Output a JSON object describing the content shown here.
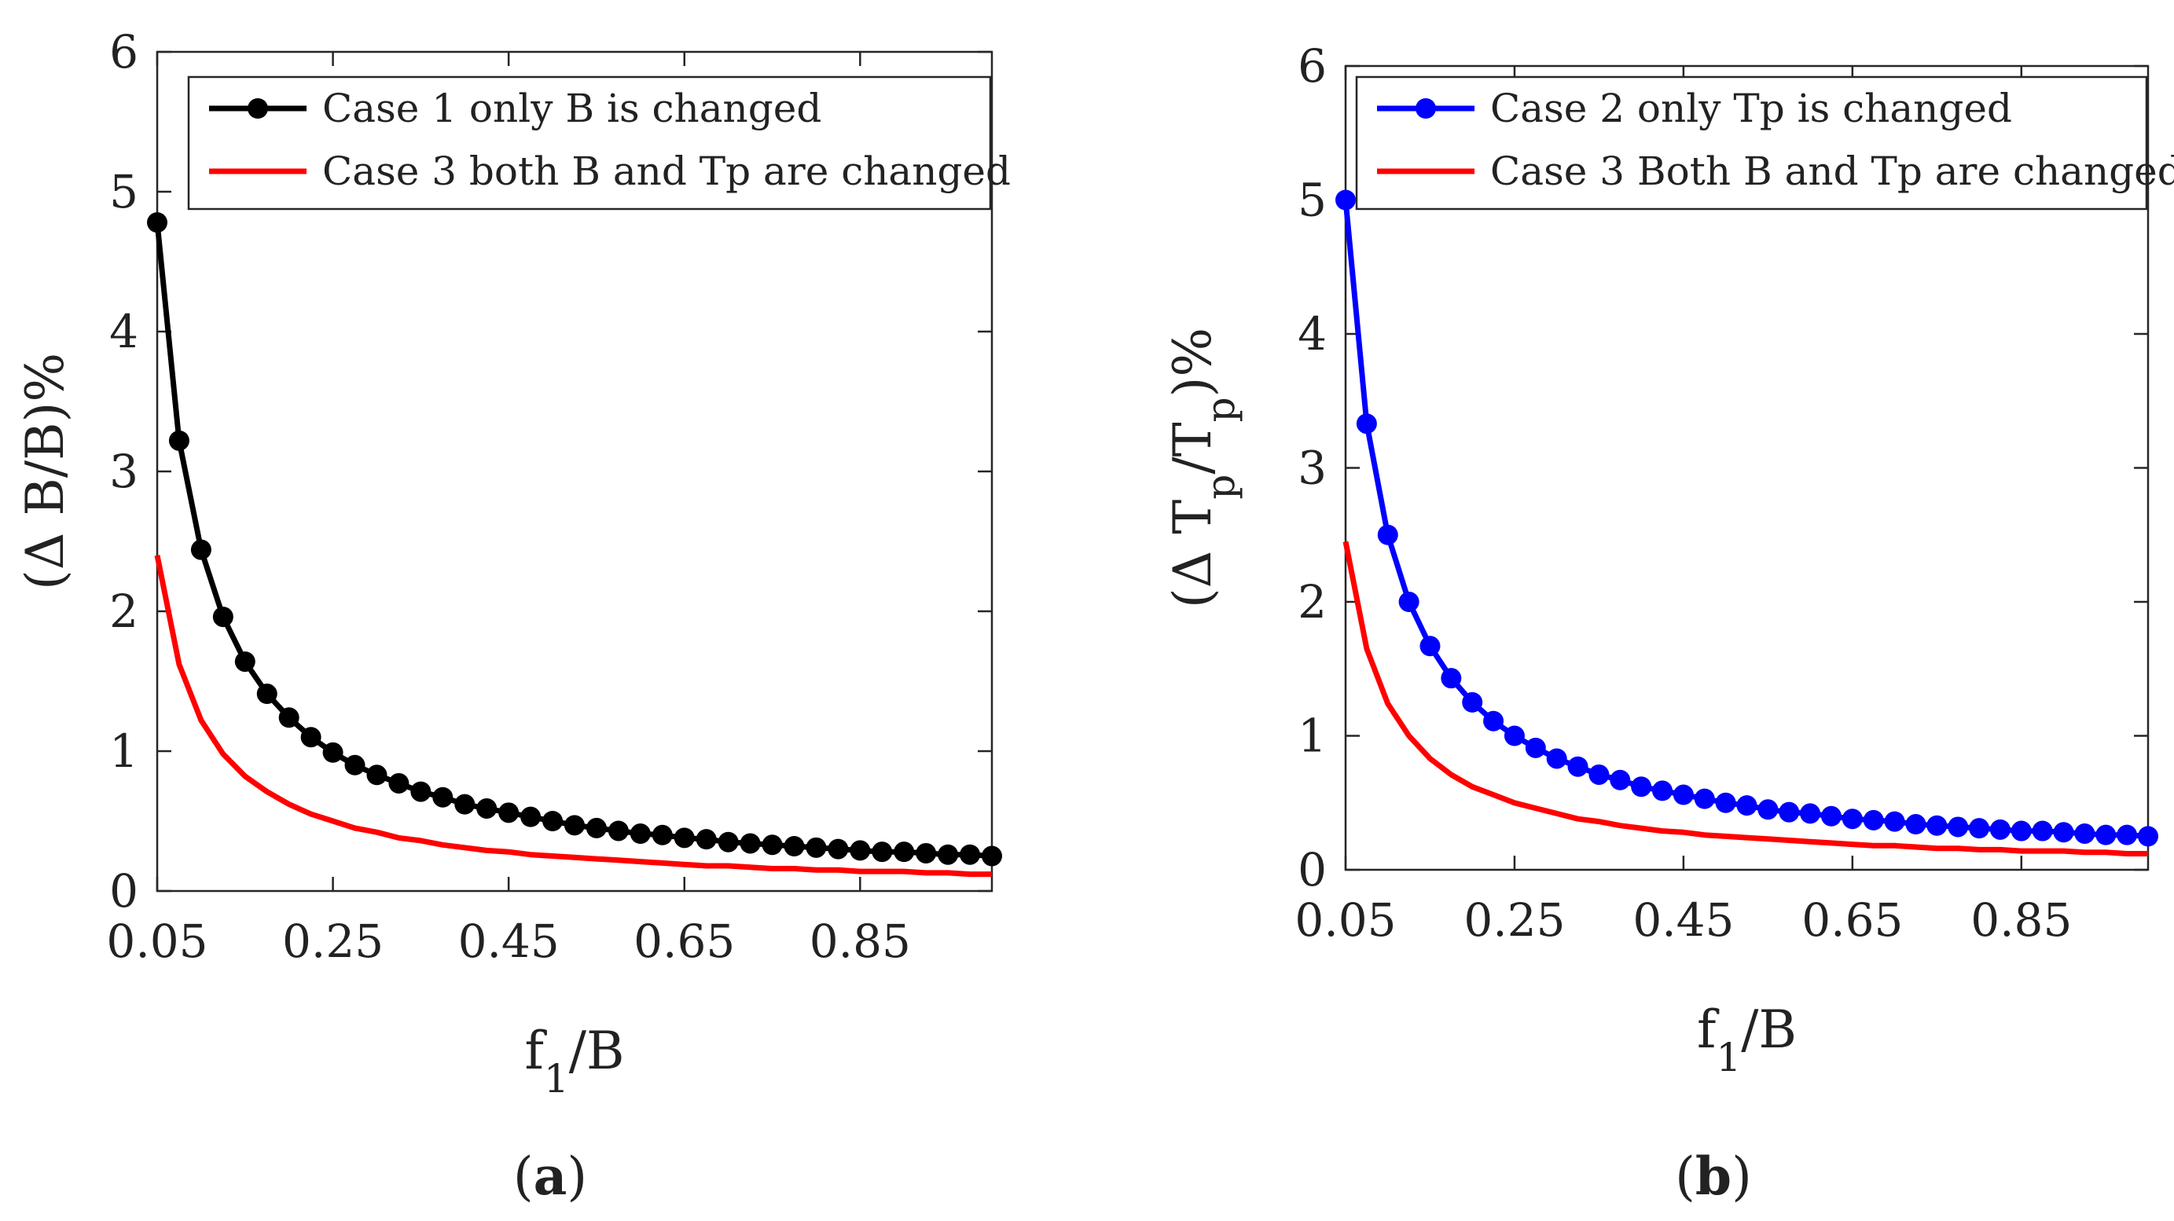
{
  "chart_data": [
    {
      "id": "a",
      "type": "line",
      "caption_letter": "a",
      "ylabel": "(Δ B/B)%",
      "xlabel_main": "f",
      "xlabel_sub": "1",
      "xlabel_rest": "/B",
      "xlim": [
        0.05,
        1.0
      ],
      "ylim": [
        0,
        6
      ],
      "xticks": [
        "0.05",
        "0.25",
        "0.45",
        "0.65",
        "0.85"
      ],
      "xtick_values": [
        0.05,
        0.25,
        0.45,
        0.65,
        0.85
      ],
      "yticks": [
        "0",
        "1",
        "2",
        "3",
        "4",
        "5",
        "6"
      ],
      "legend": [
        "Case 1 only B is changed",
        "Case 3 both B and Tp are changed"
      ],
      "series": [
        {
          "name": "Case 1 only B is changed",
          "color": "#000000",
          "marker": "circle",
          "x": [
            0.05,
            0.075,
            0.1,
            0.125,
            0.15,
            0.175,
            0.2,
            0.225,
            0.25,
            0.275,
            0.3,
            0.325,
            0.35,
            0.375,
            0.4,
            0.425,
            0.45,
            0.475,
            0.5,
            0.525,
            0.55,
            0.575,
            0.6,
            0.625,
            0.65,
            0.675,
            0.7,
            0.725,
            0.75,
            0.775,
            0.8,
            0.825,
            0.85,
            0.875,
            0.9,
            0.925,
            0.95,
            0.975,
            1.0
          ],
          "y": [
            4.78,
            3.22,
            2.44,
            1.96,
            1.64,
            1.41,
            1.24,
            1.1,
            0.99,
            0.9,
            0.83,
            0.77,
            0.71,
            0.67,
            0.62,
            0.59,
            0.56,
            0.53,
            0.5,
            0.47,
            0.45,
            0.43,
            0.41,
            0.4,
            0.38,
            0.37,
            0.35,
            0.34,
            0.33,
            0.32,
            0.31,
            0.3,
            0.29,
            0.28,
            0.28,
            0.27,
            0.26,
            0.26,
            0.25
          ]
        },
        {
          "name": "Case 3 both B and Tp are changed",
          "color": "#ff0000",
          "marker": "none",
          "x": [
            0.05,
            0.075,
            0.1,
            0.125,
            0.15,
            0.175,
            0.2,
            0.225,
            0.25,
            0.275,
            0.3,
            0.325,
            0.35,
            0.375,
            0.4,
            0.425,
            0.45,
            0.475,
            0.5,
            0.525,
            0.55,
            0.575,
            0.6,
            0.625,
            0.65,
            0.675,
            0.7,
            0.725,
            0.75,
            0.775,
            0.8,
            0.825,
            0.85,
            0.875,
            0.9,
            0.925,
            0.95,
            0.975,
            1.0
          ],
          "y": [
            2.4,
            1.62,
            1.22,
            0.98,
            0.82,
            0.71,
            0.62,
            0.55,
            0.5,
            0.45,
            0.42,
            0.38,
            0.36,
            0.33,
            0.31,
            0.29,
            0.28,
            0.26,
            0.25,
            0.24,
            0.23,
            0.22,
            0.21,
            0.2,
            0.19,
            0.18,
            0.18,
            0.17,
            0.16,
            0.16,
            0.15,
            0.15,
            0.14,
            0.14,
            0.14,
            0.13,
            0.13,
            0.12,
            0.12
          ]
        }
      ]
    },
    {
      "id": "b",
      "type": "line",
      "caption_letter": "b",
      "ylabel_parts": [
        "(Δ T",
        "p",
        "/T",
        "p",
        ")%"
      ],
      "xlabel_main": "f",
      "xlabel_sub": "1",
      "xlabel_rest": "/B",
      "xlim": [
        0.05,
        1.0
      ],
      "ylim": [
        0,
        6
      ],
      "xticks": [
        "0.05",
        "0.25",
        "0.45",
        "0.65",
        "0.85"
      ],
      "xtick_values": [
        0.05,
        0.25,
        0.45,
        0.65,
        0.85
      ],
      "yticks": [
        "0",
        "1",
        "2",
        "3",
        "4",
        "5",
        "6"
      ],
      "legend": [
        "Case 2 only Tp is changed",
        "Case 3 Both B and Tp are changed"
      ],
      "series": [
        {
          "name": "Case 2 only Tp is changed",
          "color": "#0000ff",
          "marker": "circle",
          "x": [
            0.05,
            0.075,
            0.1,
            0.125,
            0.15,
            0.175,
            0.2,
            0.225,
            0.25,
            0.275,
            0.3,
            0.325,
            0.35,
            0.375,
            0.4,
            0.425,
            0.45,
            0.475,
            0.5,
            0.525,
            0.55,
            0.575,
            0.6,
            0.625,
            0.65,
            0.675,
            0.7,
            0.725,
            0.75,
            0.775,
            0.8,
            0.825,
            0.85,
            0.875,
            0.9,
            0.925,
            0.95,
            0.975,
            1.0
          ],
          "y": [
            5.0,
            3.33,
            2.5,
            2.0,
            1.67,
            1.43,
            1.25,
            1.11,
            1.0,
            0.91,
            0.83,
            0.77,
            0.71,
            0.67,
            0.62,
            0.59,
            0.56,
            0.53,
            0.5,
            0.48,
            0.45,
            0.43,
            0.42,
            0.4,
            0.38,
            0.37,
            0.36,
            0.34,
            0.33,
            0.32,
            0.31,
            0.3,
            0.29,
            0.29,
            0.28,
            0.27,
            0.26,
            0.26,
            0.25
          ]
        },
        {
          "name": "Case 3 Both B and Tp are changed",
          "color": "#ff0000",
          "marker": "none",
          "x": [
            0.05,
            0.075,
            0.1,
            0.125,
            0.15,
            0.175,
            0.2,
            0.225,
            0.25,
            0.275,
            0.3,
            0.325,
            0.35,
            0.375,
            0.4,
            0.425,
            0.45,
            0.475,
            0.5,
            0.525,
            0.55,
            0.575,
            0.6,
            0.625,
            0.65,
            0.675,
            0.7,
            0.725,
            0.75,
            0.775,
            0.8,
            0.825,
            0.85,
            0.875,
            0.9,
            0.925,
            0.95,
            0.975,
            1.0
          ],
          "y": [
            2.45,
            1.65,
            1.24,
            1.0,
            0.83,
            0.71,
            0.62,
            0.56,
            0.5,
            0.46,
            0.42,
            0.38,
            0.36,
            0.33,
            0.31,
            0.29,
            0.28,
            0.26,
            0.25,
            0.24,
            0.23,
            0.22,
            0.21,
            0.2,
            0.19,
            0.18,
            0.18,
            0.17,
            0.16,
            0.16,
            0.15,
            0.15,
            0.14,
            0.14,
            0.14,
            0.13,
            0.13,
            0.12,
            0.12
          ]
        }
      ]
    }
  ]
}
